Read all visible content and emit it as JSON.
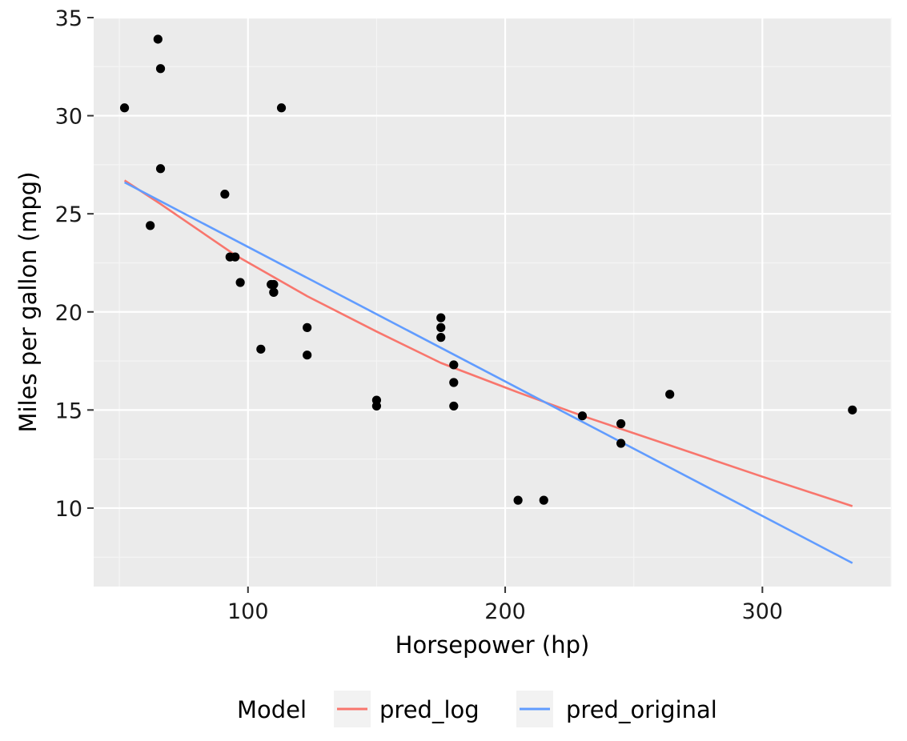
{
  "chart_data": {
    "type": "scatter",
    "title": "",
    "xlabel": "Horsepower (hp)",
    "ylabel": "Miles per gallon (mpg)",
    "xlim": [
      40,
      350
    ],
    "ylim": [
      6,
      35
    ],
    "x_ticks": [
      100,
      200,
      300
    ],
    "y_ticks": [
      10,
      15,
      20,
      25,
      30,
      35
    ],
    "grid": true,
    "background": "#ebebeb",
    "points": [
      {
        "x": 52,
        "y": 30.4
      },
      {
        "x": 62,
        "y": 24.4
      },
      {
        "x": 65,
        "y": 33.9
      },
      {
        "x": 66,
        "y": 32.4
      },
      {
        "x": 66,
        "y": 27.3
      },
      {
        "x": 91,
        "y": 26.0
      },
      {
        "x": 93,
        "y": 22.8
      },
      {
        "x": 95,
        "y": 22.8
      },
      {
        "x": 97,
        "y": 21.5
      },
      {
        "x": 105,
        "y": 18.1
      },
      {
        "x": 109,
        "y": 21.4
      },
      {
        "x": 110,
        "y": 21.0
      },
      {
        "x": 110,
        "y": 21.0
      },
      {
        "x": 110,
        "y": 21.4
      },
      {
        "x": 113,
        "y": 30.4
      },
      {
        "x": 123,
        "y": 19.2
      },
      {
        "x": 123,
        "y": 17.8
      },
      {
        "x": 150,
        "y": 15.5
      },
      {
        "x": 150,
        "y": 15.2
      },
      {
        "x": 175,
        "y": 19.7
      },
      {
        "x": 175,
        "y": 18.7
      },
      {
        "x": 175,
        "y": 19.2
      },
      {
        "x": 180,
        "y": 16.4
      },
      {
        "x": 180,
        "y": 17.3
      },
      {
        "x": 180,
        "y": 15.2
      },
      {
        "x": 205,
        "y": 10.4
      },
      {
        "x": 215,
        "y": 10.4
      },
      {
        "x": 230,
        "y": 14.7
      },
      {
        "x": 245,
        "y": 13.3
      },
      {
        "x": 245,
        "y": 14.3
      },
      {
        "x": 264,
        "y": 15.8
      },
      {
        "x": 335,
        "y": 15.0
      }
    ],
    "point_color": "#000000",
    "series": [
      {
        "name": "pred_log",
        "color": "#f8766d",
        "x": [
          52,
          66,
          95,
          123,
          150,
          175,
          205,
          230,
          264,
          300,
          335
        ],
        "y": [
          26.7,
          25.5,
          22.9,
          20.8,
          19.0,
          17.4,
          15.9,
          14.7,
          13.2,
          11.6,
          10.1
        ]
      },
      {
        "name": "pred_original",
        "color": "#619cff",
        "x": [
          52,
          335
        ],
        "y": [
          26.6,
          7.2
        ]
      }
    ],
    "legend": {
      "title": "Model",
      "position": "bottom"
    }
  }
}
